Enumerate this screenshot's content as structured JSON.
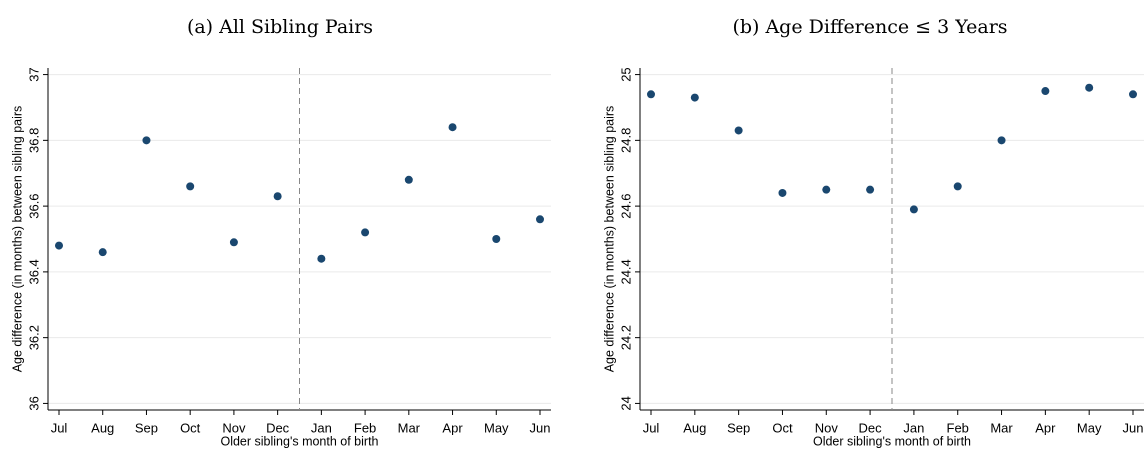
{
  "chart_data": [
    {
      "type": "scatter",
      "title": "(a) All Sibling Pairs",
      "x_label": "Older sibling's month of birth",
      "y_label": "Age difference (in months) between sibling pairs",
      "categories": [
        "Jul",
        "Aug",
        "Sep",
        "Oct",
        "Nov",
        "Dec",
        "Jan",
        "Feb",
        "Mar",
        "Apr",
        "May",
        "Jun"
      ],
      "values": [
        36.48,
        36.46,
        36.8,
        36.66,
        36.49,
        36.63,
        36.44,
        36.52,
        36.68,
        36.84,
        36.5,
        36.56
      ],
      "color": "#1a476f",
      "ylim": [
        35.98,
        37.02
      ],
      "yticks": [
        {
          "value": 36,
          "label": "36"
        },
        36.2,
        36.4,
        36.6,
        36.8,
        37
      ],
      "grid": true
    },
    {
      "type": "scatter",
      "title": "(b) Age Difference ≤ 3 Years",
      "x_label": "Older sibling's month of birth",
      "y_label": "Age difference (in months) between sibling pairs",
      "categories": [
        "Jul",
        "Aug",
        "Sep",
        "Oct",
        "Nov",
        "Dec",
        "Jan",
        "Feb",
        "Mar",
        "Apr",
        "May",
        "Jun"
      ],
      "values": [
        24.94,
        24.93,
        24.83,
        24.64,
        24.65,
        24.65,
        24.59,
        24.66,
        24.8,
        24.95,
        24.96,
        24.94
      ],
      "color": "#1a476f",
      "ylim": [
        23.98,
        25.02
      ],
      "yticks": [
        24,
        24.2,
        24.4,
        24.6,
        24.8,
        25
      ],
      "grid": true
    }
  ]
}
